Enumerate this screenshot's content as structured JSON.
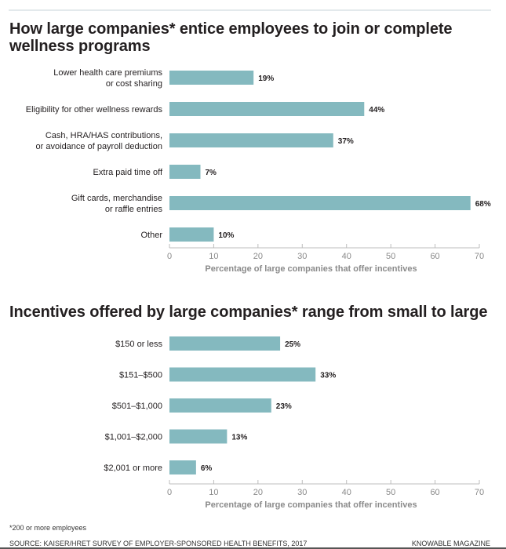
{
  "colors": {
    "bar": "#84b9bf",
    "axis": "#bdbdbd",
    "tick_label": "#8a8a8a",
    "axis_title": "#8a8a8a",
    "value_label": "#231f20"
  },
  "footnote": "*200 or more employees",
  "source": "SOURCE: KAISER/HRET SURVEY OF EMPLOYER-SPONSORED HEALTH BENEFITS, 2017",
  "brand": "KNOWABLE MAGAZINE",
  "chart_data": [
    {
      "type": "bar",
      "orientation": "horizontal",
      "title": "How large companies* entice employees to join or complete wellness programs",
      "categories": [
        [
          "Lower health care premiums",
          "or cost sharing"
        ],
        [
          "Eligibility for other wellness rewards"
        ],
        [
          "Cash, HRA/HAS contributions,",
          "or avoidance of payroll deduction"
        ],
        [
          "Extra paid time off"
        ],
        [
          "Gift cards, merchandise",
          "or raffle entries"
        ],
        [
          "Other"
        ]
      ],
      "values": [
        19,
        44,
        37,
        7,
        68,
        10
      ],
      "value_labels": [
        "19%",
        "44%",
        "37%",
        "7%",
        "68%",
        "10%"
      ],
      "xlabel": "Percentage of large companies that offer incentives",
      "ylabel": "",
      "xlim": [
        0,
        70
      ],
      "xticks": [
        0,
        10,
        20,
        30,
        40,
        50,
        60,
        70
      ],
      "grid": false
    },
    {
      "type": "bar",
      "orientation": "horizontal",
      "title": "Incentives offered by large companies* range from small to large",
      "categories": [
        [
          "$150 or less"
        ],
        [
          "$151–$500"
        ],
        [
          "$501–$1,000"
        ],
        [
          "$1,001–$2,000"
        ],
        [
          "$2,001 or more"
        ]
      ],
      "values": [
        25,
        33,
        23,
        13,
        6
      ],
      "value_labels": [
        "25%",
        "33%",
        "23%",
        "13%",
        "6%"
      ],
      "xlabel": "Percentage of large companies that offer incentives",
      "ylabel": "",
      "xlim": [
        0,
        70
      ],
      "xticks": [
        0,
        10,
        20,
        30,
        40,
        50,
        60,
        70
      ],
      "grid": false
    }
  ]
}
